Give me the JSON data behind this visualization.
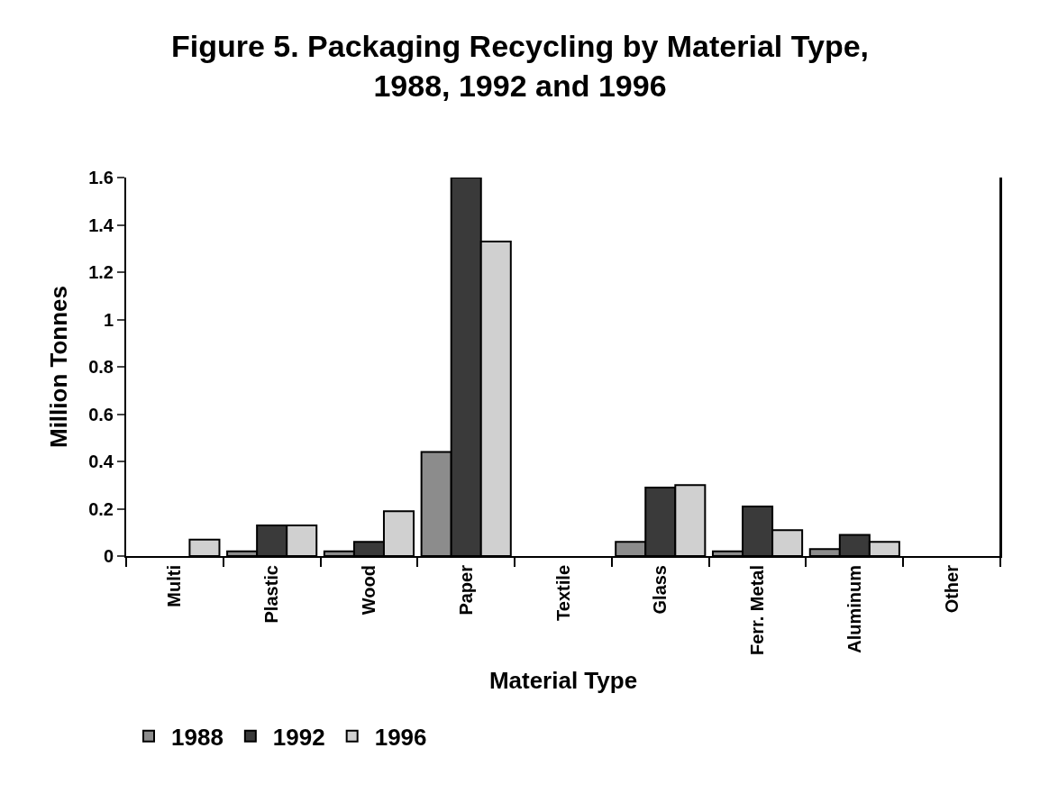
{
  "chart_data": {
    "type": "bar",
    "title": "Figure 5. Packaging Recycling by Material Type,\n1988, 1992 and 1996",
    "xlabel": "Material Type",
    "ylabel": "Million Tonnes",
    "categories": [
      "Multi",
      "Plastic",
      "Wood",
      "Paper",
      "Textile",
      "Glass",
      "Ferr. Metal",
      "Aluminum",
      "Other"
    ],
    "series": [
      {
        "name": "1988",
        "color": "#8c8c8c",
        "values": [
          null,
          0.02,
          0.02,
          0.44,
          null,
          0.06,
          0.02,
          0.03,
          null
        ]
      },
      {
        "name": "1992",
        "color": "#3a3a3a",
        "values": [
          null,
          0.13,
          0.06,
          1.6,
          null,
          0.29,
          0.21,
          0.09,
          null
        ]
      },
      {
        "name": "1996",
        "color": "#d0d0d0",
        "values": [
          0.07,
          0.13,
          0.19,
          1.33,
          null,
          0.3,
          0.11,
          0.06,
          null
        ]
      }
    ],
    "ylim": [
      0,
      1.6
    ],
    "yticks": [
      0,
      0.2,
      0.4,
      0.6,
      0.8,
      1,
      1.2,
      1.4,
      1.6
    ],
    "grid": false,
    "legend": "bottom"
  }
}
